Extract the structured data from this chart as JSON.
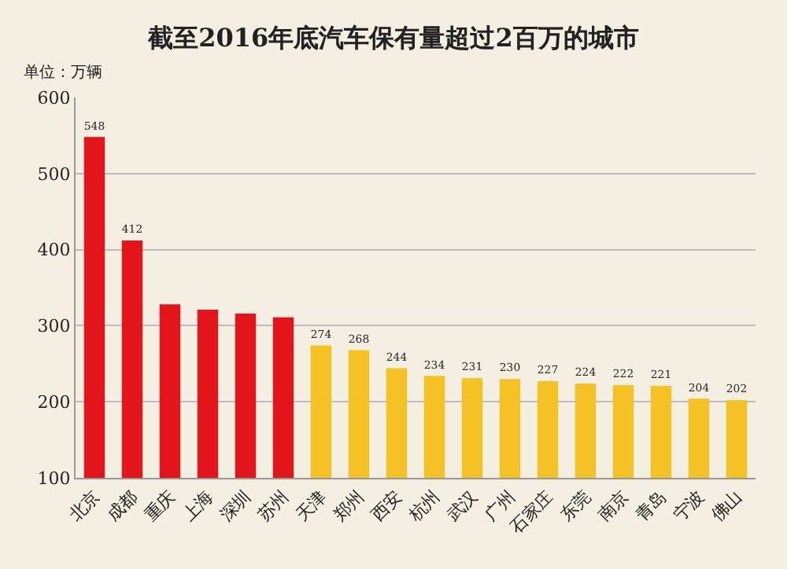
{
  "chart_data": {
    "type": "bar",
    "title": "截至2016年底汽车保有量超过2百万的城市",
    "ylabel": "单位：万辆",
    "categories": [
      "北京",
      "成都",
      "重庆",
      "上海",
      "深圳",
      "苏州",
      "天津",
      "郑州",
      "西安",
      "杭州",
      "武汉",
      "广州",
      "石家庄",
      "东莞",
      "南京",
      "青岛",
      "宁波",
      "佛山"
    ],
    "values": [
      548,
      412,
      328,
      321,
      316,
      311,
      274,
      268,
      244,
      234,
      231,
      230,
      227,
      224,
      222,
      221,
      204,
      202
    ],
    "value_labels": [
      "548",
      "412",
      null,
      null,
      null,
      null,
      "274",
      "268",
      "244",
      "234",
      "231",
      "230",
      "227",
      "224",
      "222",
      "221",
      "204",
      "202"
    ],
    "colors": [
      "#e3151b",
      "#e3151b",
      "#e3151b",
      "#e3151b",
      "#e3151b",
      "#e3151b",
      "#f4c224",
      "#f4c224",
      "#f4c224",
      "#f4c224",
      "#f4c224",
      "#f4c224",
      "#f4c224",
      "#f4c224",
      "#f4c224",
      "#f4c224",
      "#f4c224",
      "#f4c224"
    ],
    "ylim": [
      100,
      600
    ],
    "yticks": [
      100,
      200,
      300,
      400,
      500,
      600
    ],
    "grid": "y",
    "legend": false
  }
}
